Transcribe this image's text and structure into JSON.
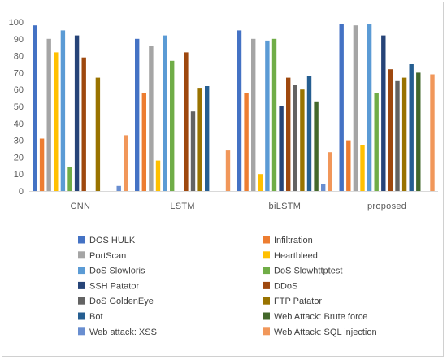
{
  "chart_data": {
    "type": "bar",
    "title": "",
    "xlabel": "",
    "ylabel": "",
    "ylim": [
      0,
      100
    ],
    "yticks": [
      0,
      10,
      20,
      30,
      40,
      50,
      60,
      70,
      80,
      90,
      100
    ],
    "grid": false,
    "legend_position": "bottom",
    "categories": [
      "CNN",
      "LSTM",
      "biLSTM",
      "proposed"
    ],
    "series": [
      {
        "name": "DOS HULK",
        "color": "#4472C4",
        "values": [
          98,
          90,
          95,
          99
        ]
      },
      {
        "name": "Infiltration",
        "color": "#ED7D31",
        "values": [
          31,
          58,
          58,
          30
        ]
      },
      {
        "name": "PortScan",
        "color": "#A5A5A5",
        "values": [
          90,
          86,
          90,
          98
        ]
      },
      {
        "name": "Heartbleed",
        "color": "#FFC000",
        "values": [
          82,
          18,
          10,
          27
        ]
      },
      {
        "name": "DoS Slowloris",
        "color": "#5B9BD5",
        "values": [
          95,
          92,
          89,
          99
        ]
      },
      {
        "name": "DoS Slowhttptest",
        "color": "#70AD47",
        "values": [
          14,
          77,
          90,
          58
        ]
      },
      {
        "name": "SSH Patator",
        "color": "#264478",
        "values": [
          92,
          0,
          50,
          92
        ]
      },
      {
        "name": "DDoS",
        "color": "#9E480E",
        "values": [
          79,
          82,
          67,
          72
        ]
      },
      {
        "name": "DoS GoldenEye",
        "color": "#636363",
        "values": [
          0,
          47,
          63,
          65
        ]
      },
      {
        "name": "FTP Patator",
        "color": "#997300",
        "values": [
          67,
          61,
          60,
          67
        ]
      },
      {
        "name": "Bot",
        "color": "#255E91",
        "values": [
          0,
          62,
          68,
          75
        ]
      },
      {
        "name": "Web Attack: Brute force",
        "color": "#43682B",
        "values": [
          0,
          0,
          53,
          70
        ]
      },
      {
        "name": "Web attack: XSS",
        "color": "#698ED0",
        "values": [
          3,
          0,
          4,
          0
        ]
      },
      {
        "name": "Web Attack: SQL injection",
        "color": "#F1975A",
        "values": [
          33,
          24,
          23,
          69
        ]
      }
    ]
  }
}
